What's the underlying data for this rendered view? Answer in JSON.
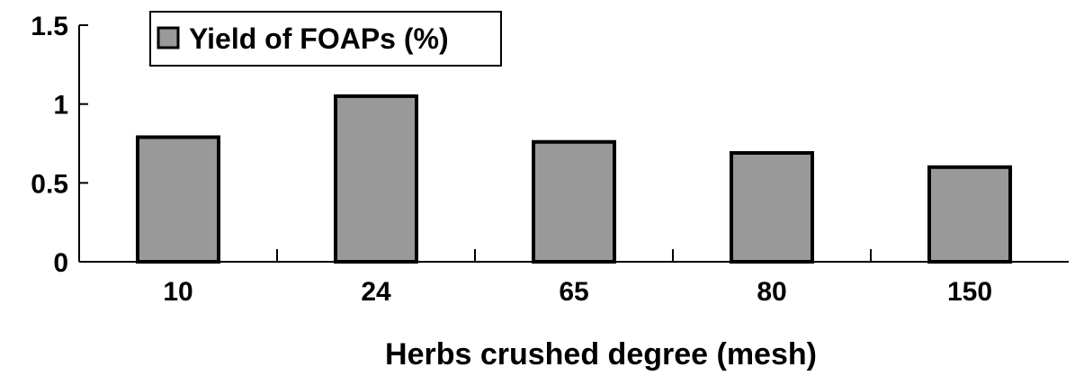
{
  "chart_data": {
    "type": "bar",
    "title": "",
    "xlabel": "Herbs crushed degree (mesh)",
    "ylabel": "",
    "categories": [
      "10",
      "24",
      "65",
      "80",
      "150"
    ],
    "series": [
      {
        "name": "Yield of FOAPs (%)",
        "values": [
          0.79,
          1.05,
          0.76,
          0.69,
          0.6
        ]
      }
    ],
    "ylim": [
      0,
      1.5
    ],
    "yticks": [
      0,
      0.5,
      1,
      1.5
    ],
    "ytick_labels": [
      "0",
      "0.5",
      "1",
      "1.5"
    ],
    "grid": false,
    "legend_position": "top-left",
    "colors": {
      "bar_fill": "#999999",
      "bar_stroke": "#000000",
      "axis": "#000000"
    }
  }
}
